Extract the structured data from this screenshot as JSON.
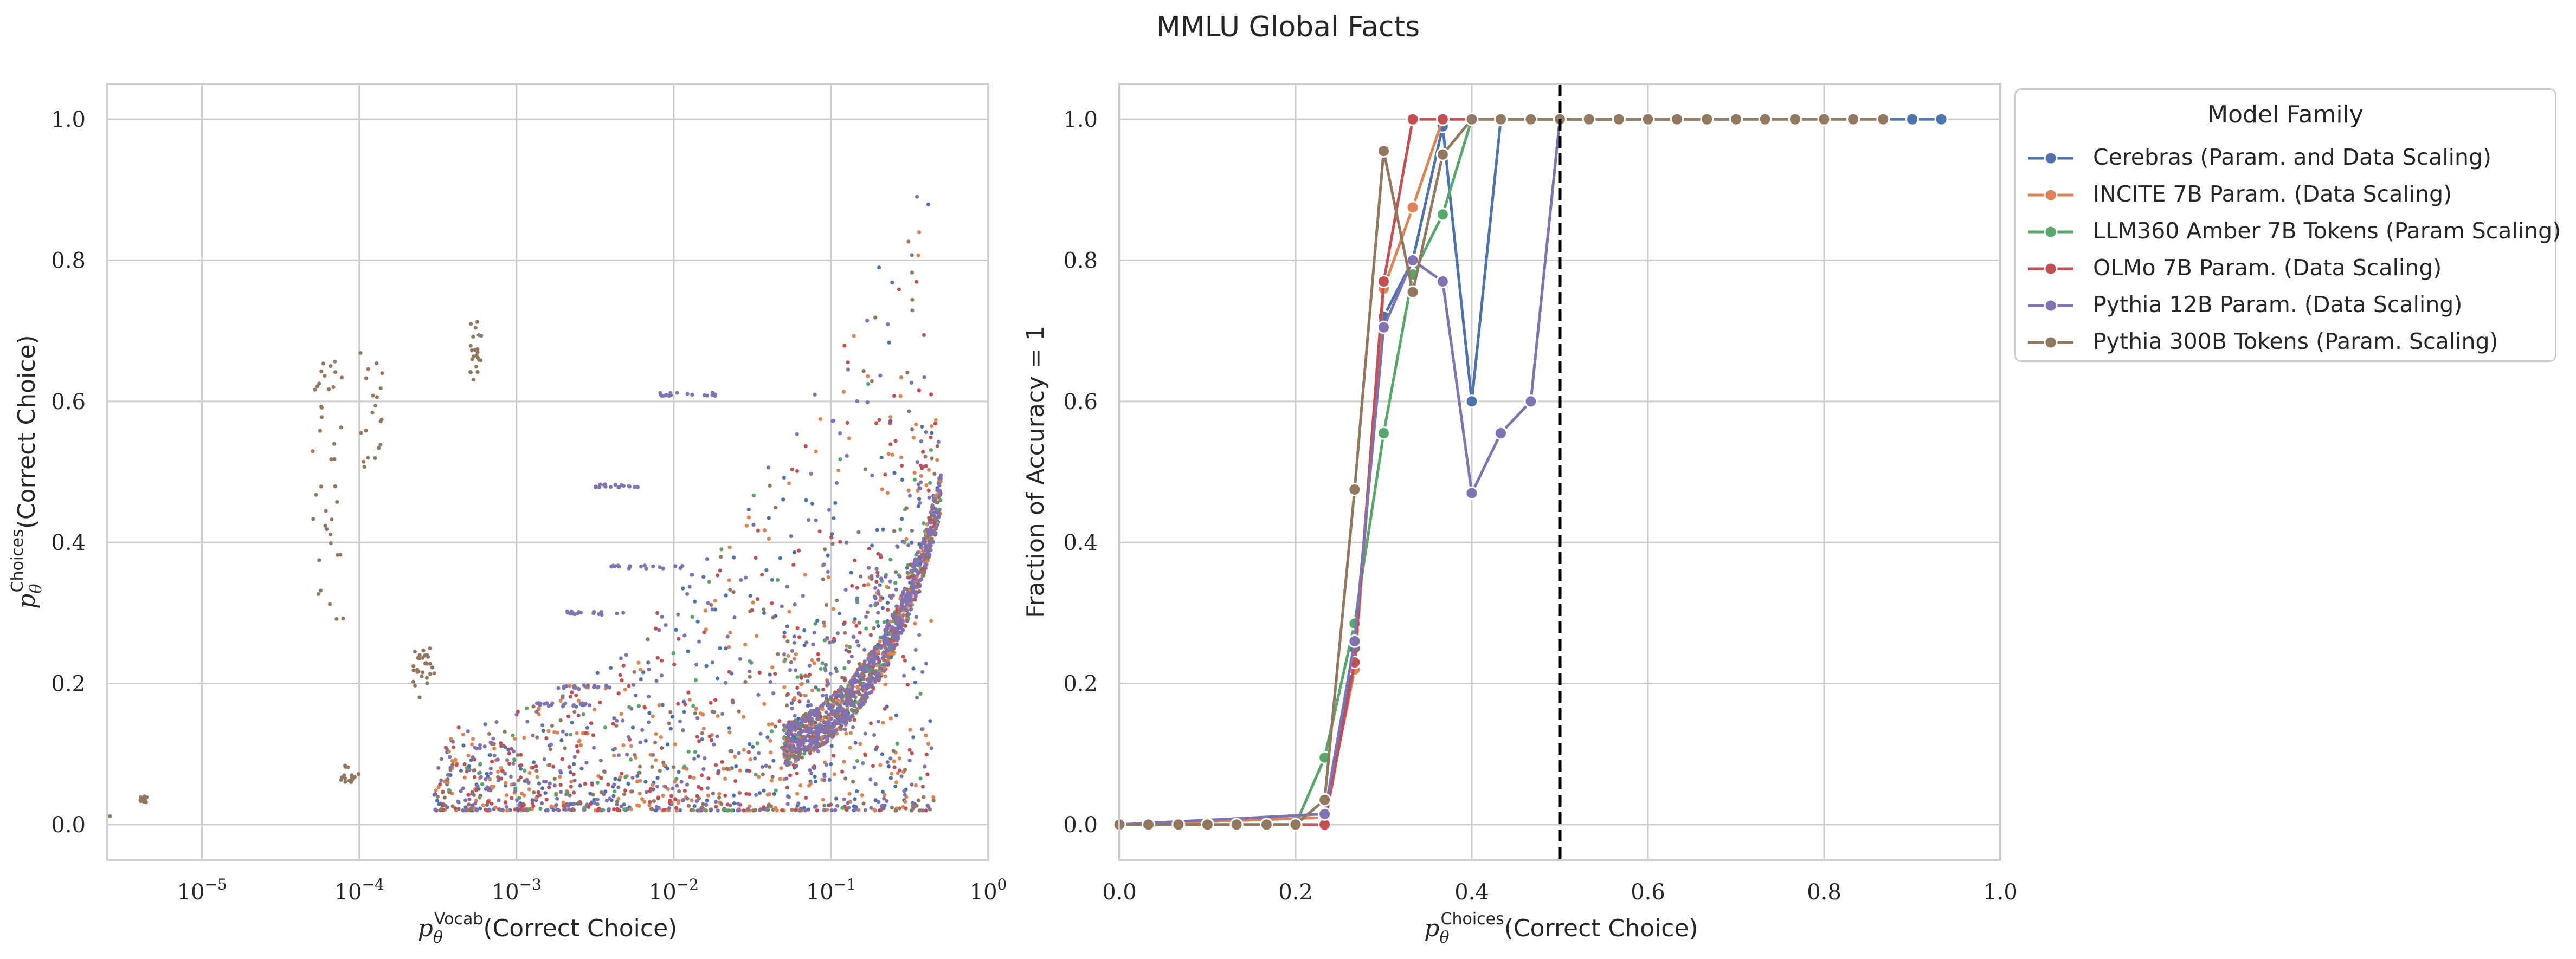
{
  "figure": {
    "title": "MMLU Global Facts"
  },
  "colors": {
    "Cerebras": "#4c72b0",
    "INCITE": "#dd8452",
    "LLM360": "#55a868",
    "OLMo": "#c44e52",
    "Pythia12B": "#8172b3",
    "Pythia300B": "#937860",
    "grid": "#cccccc",
    "threshold": "#000000"
  },
  "chart_data": [
    {
      "type": "scatter",
      "xlabel_sub": "θ",
      "xlabel_sup": "Vocab",
      "xlabel_text": "(Correct Choice)",
      "ylabel_sub": "θ",
      "ylabel_sup": "Choices",
      "ylabel_text": "(Correct Choice)",
      "x_scale": "log",
      "xlim": [
        2.5e-06,
        1.0
      ],
      "ylim": [
        -0.05,
        1.05
      ],
      "x_ticks": [
        {
          "base": "10",
          "exp": "−5",
          "value": 1e-05
        },
        {
          "base": "10",
          "exp": "−4",
          "value": 0.0001
        },
        {
          "base": "10",
          "exp": "−3",
          "value": 0.001
        },
        {
          "base": "10",
          "exp": "−2",
          "value": 0.01
        },
        {
          "base": "10",
          "exp": "−1",
          "value": 0.1
        },
        {
          "base": "10",
          "exp": "0",
          "value": 1
        }
      ],
      "y_ticks": [
        "0.0",
        "0.2",
        "0.4",
        "0.6",
        "0.8",
        "1.0"
      ],
      "grid": true,
      "series_summary": [
        {
          "color_key": "Pythia300B",
          "clusters": [
            {
              "x": [
                4e-06,
                4.5e-06
              ],
              "y": [
                0.03,
                0.04
              ],
              "n": 18
            },
            {
              "x": [
                7e-05,
                0.0001
              ],
              "y": [
                0.06,
                0.085
              ],
              "n": 16
            },
            {
              "x": [
                0.00022,
                0.0003
              ],
              "y": [
                0.18,
                0.25
              ],
              "n": 30
            },
            {
              "x": [
                0.0005,
                0.0006
              ],
              "y": [
                0.63,
                0.72
              ],
              "n": 22
            },
            {
              "x": [
                5e-05,
                8e-05
              ],
              "y": [
                0.28,
                0.66
              ],
              "n": 40
            },
            {
              "x": [
                0.0001,
                0.00015
              ],
              "y": [
                0.5,
                0.67
              ],
              "n": 20
            }
          ]
        },
        {
          "color_key": "Cerebras",
          "trend": "dense along curve y ≈ 0.1 + 0.75·x^0.55 for x in [0.05, 0.5]",
          "scatter_x": [
            0.0003,
            0.4
          ],
          "scatter_y": [
            0.03,
            0.87
          ]
        },
        {
          "color_key": "INCITE",
          "scatter_x": [
            0.0005,
            0.5
          ],
          "scatter_y": [
            0.02,
            0.95
          ]
        },
        {
          "color_key": "LLM360",
          "trend": "dense along curve near x 0.1–0.4"
        },
        {
          "color_key": "OLMo",
          "scatter_x": [
            0.001,
            0.3
          ],
          "scatter_y": [
            0.05,
            0.65
          ]
        },
        {
          "color_key": "Pythia12B",
          "trend": "densest along curve x 0.1–0.5, y 0.1–0.55",
          "scatter_x": [
            0.0003,
            0.5
          ],
          "scatter_y": [
            0.03,
            0.82
          ]
        }
      ]
    },
    {
      "type": "line",
      "xlabel_sub": "θ",
      "xlabel_sup": "Choices",
      "xlabel_text": "(Correct Choice)",
      "ylabel": "Fraction of Accuracy = 1",
      "xlim": [
        0.0,
        1.0
      ],
      "ylim": [
        -0.05,
        1.05
      ],
      "x_ticks": [
        "0.0",
        "0.2",
        "0.4",
        "0.6",
        "0.8",
        "1.0"
      ],
      "y_ticks": [
        "0.0",
        "0.2",
        "0.4",
        "0.6",
        "0.8",
        "1.0"
      ],
      "grid": true,
      "threshold_x": 0.5,
      "legend": {
        "title": "Model Family",
        "placement": "outside upper right"
      },
      "series": [
        {
          "name": "Cerebras (Param. and Data Scaling)",
          "color_key": "Cerebras",
          "x": [
            0.0,
            0.233,
            0.267,
            0.3,
            0.333,
            0.367,
            0.4,
            0.433,
            0.467,
            0.5,
            0.533,
            0.567,
            0.6,
            0.633,
            0.667,
            0.7,
            0.733,
            0.767,
            0.8,
            0.833,
            0.867,
            0.9,
            0.933
          ],
          "y": [
            0.0,
            0.01,
            0.25,
            0.72,
            0.8,
            0.99,
            0.6,
            1.0,
            1.0,
            1.0,
            1.0,
            1.0,
            1.0,
            1.0,
            1.0,
            1.0,
            1.0,
            1.0,
            1.0,
            1.0,
            1.0,
            1.0,
            1.0
          ]
        },
        {
          "name": "INCITE 7B Param. (Data Scaling)",
          "color_key": "INCITE",
          "x": [
            0.0,
            0.233,
            0.267,
            0.3,
            0.333,
            0.367,
            0.4,
            0.433,
            0.467,
            0.5,
            0.533,
            0.567,
            0.6,
            0.633,
            0.667,
            0.7,
            0.733,
            0.767,
            0.8,
            0.833,
            0.867
          ],
          "y": [
            0.0,
            0.01,
            0.22,
            0.76,
            0.875,
            1.0,
            1.0,
            1.0,
            1.0,
            1.0,
            1.0,
            1.0,
            1.0,
            1.0,
            1.0,
            1.0,
            1.0,
            1.0,
            1.0,
            1.0,
            1.0
          ]
        },
        {
          "name": "LLM360 Amber 7B Tokens (Param Scaling)",
          "color_key": "LLM360",
          "x": [
            0.0,
            0.2,
            0.233,
            0.267,
            0.3,
            0.333,
            0.367,
            0.4,
            0.433,
            0.467,
            0.5,
            0.533,
            0.567,
            0.6,
            0.633,
            0.667,
            0.7,
            0.733,
            0.767,
            0.8,
            0.833,
            0.867
          ],
          "y": [
            0.0,
            0.0,
            0.095,
            0.285,
            0.555,
            0.78,
            0.865,
            1.0,
            1.0,
            1.0,
            1.0,
            1.0,
            1.0,
            1.0,
            1.0,
            1.0,
            1.0,
            1.0,
            1.0,
            1.0,
            1.0,
            1.0
          ]
        },
        {
          "name": "OLMo 7B Param. (Data Scaling)",
          "color_key": "OLMo",
          "x": [
            0.0,
            0.233,
            0.267,
            0.3,
            0.333,
            0.367,
            0.4,
            0.433,
            0.467,
            0.5,
            0.533,
            0.567,
            0.6
          ],
          "y": [
            0.0,
            0.0,
            0.23,
            0.77,
            1.0,
            1.0,
            1.0,
            1.0,
            1.0,
            1.0,
            1.0,
            1.0,
            1.0
          ]
        },
        {
          "name": "Pythia 12B Param. (Data Scaling)",
          "color_key": "Pythia12B",
          "x": [
            0.0,
            0.233,
            0.267,
            0.3,
            0.333,
            0.367,
            0.4,
            0.433,
            0.467,
            0.5,
            0.533,
            0.567,
            0.6,
            0.633,
            0.667,
            0.7
          ],
          "y": [
            0.0,
            0.015,
            0.26,
            0.705,
            0.8,
            0.77,
            0.47,
            0.555,
            0.6,
            1.0,
            1.0,
            1.0,
            1.0,
            1.0,
            1.0,
            1.0
          ]
        },
        {
          "name": "Pythia 300B Tokens (Param. Scaling)",
          "color_key": "Pythia300B",
          "x": [
            0.0,
            0.033,
            0.067,
            0.1,
            0.133,
            0.167,
            0.2,
            0.233,
            0.267,
            0.3,
            0.333,
            0.367,
            0.4,
            0.433,
            0.467,
            0.5,
            0.533,
            0.567,
            0.6,
            0.633,
            0.667,
            0.7,
            0.733,
            0.767,
            0.8,
            0.833,
            0.867
          ],
          "y": [
            0.0,
            0.0,
            0.0,
            0.0,
            0.0,
            0.0,
            0.0,
            0.035,
            0.475,
            0.955,
            0.755,
            0.95,
            1.0,
            1.0,
            1.0,
            1.0,
            1.0,
            1.0,
            1.0,
            1.0,
            1.0,
            1.0,
            1.0,
            1.0,
            1.0,
            1.0,
            1.0
          ]
        }
      ]
    }
  ]
}
